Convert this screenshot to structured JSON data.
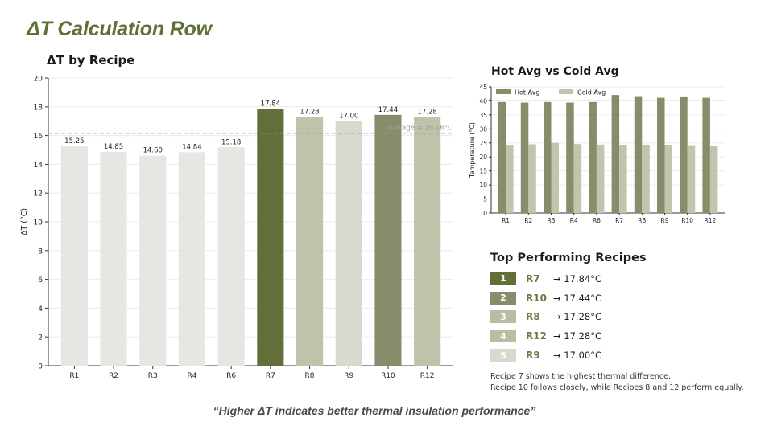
{
  "slide_title": "ΔT Calculation Row",
  "quote": "“Higher ΔT indicates better thermal insulation performance”",
  "chart_data": [
    {
      "type": "bar",
      "title": "ΔT by Recipe",
      "xlabel": "",
      "ylabel": "ΔT (°C)",
      "ylim": [
        0,
        20
      ],
      "yticks": [
        0,
        2,
        4,
        6,
        8,
        10,
        12,
        14,
        16,
        18,
        20
      ],
      "grid": true,
      "categories": [
        "R1",
        "R2",
        "R3",
        "R4",
        "R6",
        "R7",
        "R8",
        "R9",
        "R10",
        "R12"
      ],
      "values": [
        15.25,
        14.85,
        14.6,
        14.84,
        15.18,
        17.84,
        17.28,
        17.0,
        17.44,
        17.28
      ],
      "value_labels": [
        "15.25",
        "14.85",
        "14.60",
        "14.84",
        "15.18",
        "17.84",
        "17.28",
        "17.00",
        "17.44",
        "17.28"
      ],
      "bar_colors": [
        "#e6e6e2",
        "#e6e6e2",
        "#e6e6e2",
        "#e6e6e2",
        "#e6e6e2",
        "#636f38",
        "#c0c3aa",
        "#d8d9cf",
        "#888c6b",
        "#c0c3aa"
      ],
      "reference_line": {
        "value": 16.16,
        "label": "Average = 16.16°C",
        "color": "#999999"
      }
    },
    {
      "type": "bar",
      "title": "Hot Avg vs Cold Avg",
      "xlabel": "",
      "ylabel": "Temperature (°C)",
      "ylim": [
        0,
        45
      ],
      "yticks": [
        0,
        5,
        10,
        15,
        20,
        25,
        30,
        35,
        40,
        45
      ],
      "grid": true,
      "legend": "top-left",
      "categories": [
        "R1",
        "R2",
        "R3",
        "R4",
        "R6",
        "R7",
        "R8",
        "R9",
        "R10",
        "R12"
      ],
      "series": [
        {
          "name": "Hot Avg",
          "color": "#888c6b",
          "values": [
            39.6,
            39.4,
            39.6,
            39.4,
            39.6,
            42.1,
            41.4,
            41.1,
            41.3,
            41.1
          ]
        },
        {
          "name": "Cold Avg",
          "color": "#c2c5ac",
          "values": [
            24.3,
            24.5,
            25.0,
            24.6,
            24.4,
            24.3,
            24.1,
            24.1,
            23.9,
            23.8
          ]
        }
      ]
    }
  ],
  "top_performing": {
    "title": "Top Performing Recipes",
    "items": [
      {
        "rank": "1",
        "recipe": "R7",
        "value": "→ 17.84°C",
        "color": "#636f38"
      },
      {
        "rank": "2",
        "recipe": "R10",
        "value": "→ 17.44°C",
        "color": "#888c6b"
      },
      {
        "rank": "3",
        "recipe": "R8",
        "value": "→ 17.28°C",
        "color": "#b9bda2"
      },
      {
        "rank": "4",
        "recipe": "R12",
        "value": "→ 17.28°C",
        "color": "#b9bda2"
      },
      {
        "rank": "5",
        "recipe": "R9",
        "value": "→ 17.00°C",
        "color": "#d8d9cf"
      }
    ]
  },
  "notes": [
    "Recipe 7 shows the highest thermal difference.",
    "Recipe 10 follows closely, while Recipes 8 and 12 perform equally."
  ]
}
